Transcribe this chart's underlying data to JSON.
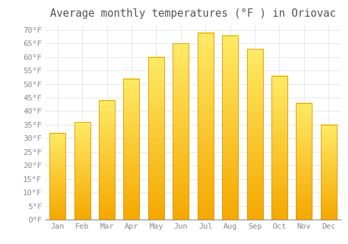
{
  "title": "Average monthly temperatures (°F ) in Oriovac",
  "months": [
    "Jan",
    "Feb",
    "Mar",
    "Apr",
    "May",
    "Jun",
    "Jul",
    "Aug",
    "Sep",
    "Oct",
    "Nov",
    "Dec"
  ],
  "values": [
    32,
    36,
    44,
    52,
    60,
    65,
    69,
    68,
    63,
    53,
    43,
    35
  ],
  "bar_color_top": "#FFDD44",
  "bar_color_bottom": "#F5A800",
  "bar_color_edge": "#E09000",
  "background_color": "#FFFFFF",
  "grid_color": "#DDDDDD",
  "text_color": "#888888",
  "title_color": "#555555",
  "ylim": [
    0,
    72
  ],
  "yticks": [
    0,
    5,
    10,
    15,
    20,
    25,
    30,
    35,
    40,
    45,
    50,
    55,
    60,
    65,
    70
  ],
  "title_fontsize": 11,
  "tick_fontsize": 8
}
